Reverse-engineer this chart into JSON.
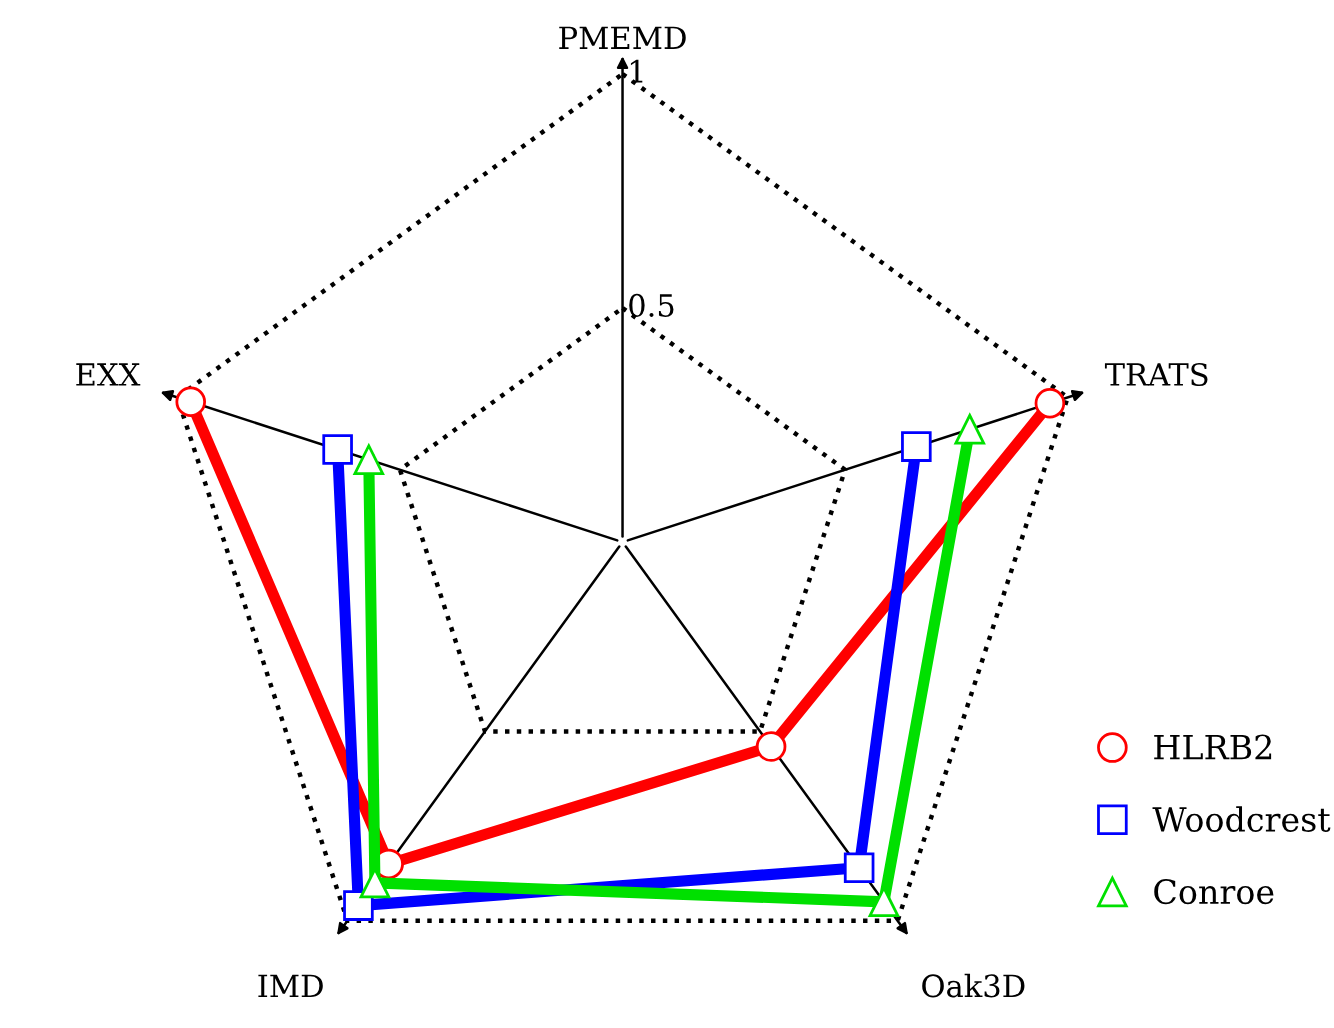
{
  "chart_data": {
    "type": "radar",
    "categories": [
      "PMEMD",
      "TRATS",
      "Oak3D",
      "IMD",
      "EXX"
    ],
    "ylim": [
      0,
      1
    ],
    "yticks": [
      0.5,
      1
    ],
    "grid": true,
    "line_style": "solid",
    "legend": "bottom right",
    "series": [
      {
        "name": "HLRB2",
        "color": "#ff0000",
        "marker": "circle",
        "values": [
          null,
          0.96,
          0.54,
          0.85,
          0.97
        ]
      },
      {
        "name": "Woodcrest",
        "color": "#0000ff",
        "marker": "square",
        "values": [
          null,
          0.66,
          0.86,
          0.96,
          0.64
        ]
      },
      {
        "name": "Conroe",
        "color": "#00e000",
        "marker": "triangle",
        "values": [
          null,
          0.78,
          0.95,
          0.9,
          0.57
        ]
      }
    ]
  }
}
